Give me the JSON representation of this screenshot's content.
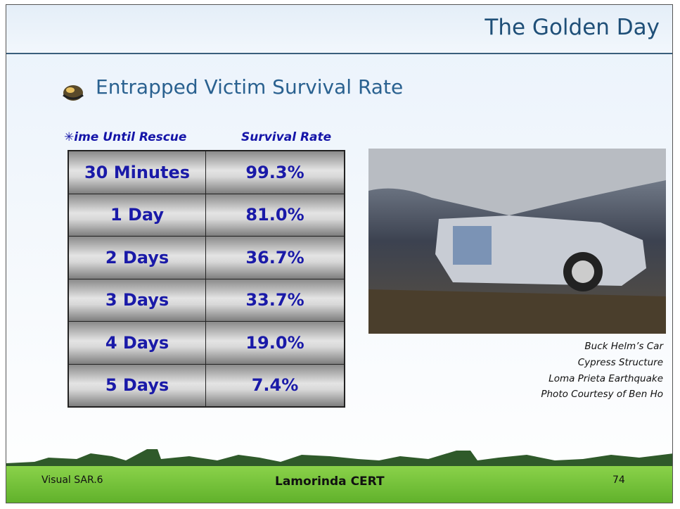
{
  "header": {
    "title": "The Golden Day"
  },
  "subtitle": "Entrapped Victim Survival Rate",
  "table": {
    "headers": [
      "✳ime Until Rescue",
      "Survival Rate"
    ],
    "rows": [
      [
        "30 Minutes",
        "99.3%"
      ],
      [
        "1 Day",
        "81.0%"
      ],
      [
        "2 Days",
        "36.7%"
      ],
      [
        "3 Days",
        "33.7%"
      ],
      [
        "4 Days",
        "19.0%"
      ],
      [
        "5 Days",
        "7.4%"
      ]
    ]
  },
  "photo": {
    "caption": [
      "Buck Helm’s Car",
      "Cypress Structure",
      "Loma Prieta Earthquake",
      "Photo Courtesy of Ben Ho"
    ]
  },
  "footer": {
    "left": "Visual SAR.6",
    "center": "Lamorinda CERT",
    "page": "74"
  }
}
